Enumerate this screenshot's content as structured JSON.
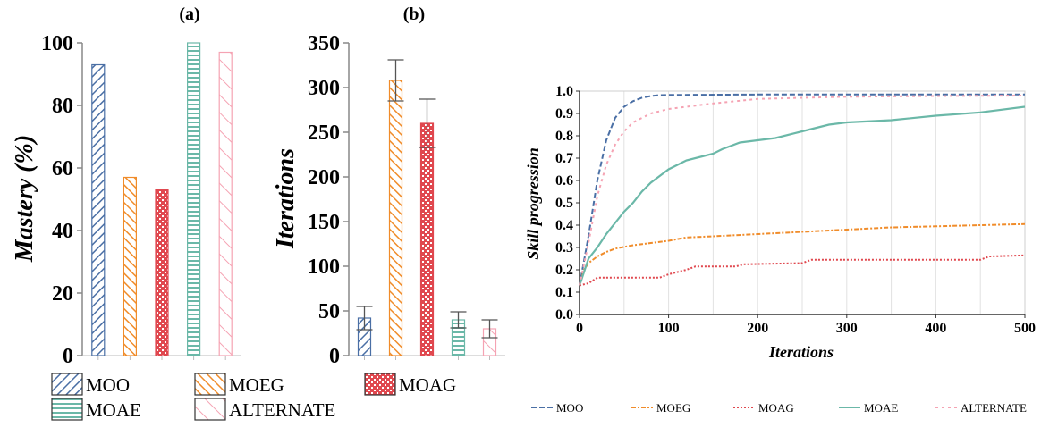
{
  "chart_data": [
    {
      "type": "bar",
      "panel_label": "(a)",
      "title": "",
      "xlabel": "",
      "ylabel": "Mastery (%)",
      "ylim": [
        0,
        100
      ],
      "yticks": [
        0,
        20,
        40,
        60,
        80,
        100
      ],
      "categories": [
        "MOO",
        "MOEG",
        "MOAG",
        "MOAE",
        "ALTERNATE"
      ],
      "values": [
        93,
        57,
        53,
        100,
        97
      ],
      "error": null
    },
    {
      "type": "bar",
      "panel_label": "(b)",
      "title": "",
      "xlabel": "",
      "ylabel": "Iterations",
      "ylim": [
        0,
        350
      ],
      "yticks": [
        0,
        50,
        100,
        150,
        200,
        250,
        300,
        350
      ],
      "categories": [
        "MOO",
        "MOEG",
        "MOAG",
        "MOAE",
        "ALTERNATE"
      ],
      "values": [
        42,
        308,
        260,
        40,
        30
      ],
      "error": [
        13,
        23,
        27,
        9,
        10
      ]
    },
    {
      "type": "line",
      "title": "",
      "xlabel": "Iterations",
      "ylabel": "Skill progression",
      "xlim": [
        0,
        500
      ],
      "ylim": [
        0,
        1.0
      ],
      "xticks": [
        0,
        100,
        200,
        300,
        400,
        500
      ],
      "yticks": [
        "0.0",
        "0.1",
        "0.2",
        "0.3",
        "0.4",
        "0.5",
        "0.6",
        "0.7",
        "0.8",
        "0.9",
        "1.0"
      ],
      "grid": "vertical",
      "legend": "bottom",
      "series": [
        {
          "name": "MOO",
          "color": "#4a6fa5",
          "dash": "dashed",
          "points": [
            [
              0,
              0.13
            ],
            [
              10,
              0.35
            ],
            [
              20,
              0.6
            ],
            [
              30,
              0.78
            ],
            [
              40,
              0.88
            ],
            [
              50,
              0.93
            ],
            [
              60,
              0.955
            ],
            [
              70,
              0.97
            ],
            [
              80,
              0.978
            ],
            [
              90,
              0.982
            ],
            [
              100,
              0.983
            ],
            [
              200,
              0.985
            ],
            [
              300,
              0.985
            ],
            [
              400,
              0.985
            ],
            [
              500,
              0.985
            ]
          ]
        },
        {
          "name": "MOEG",
          "color": "#f08c2a",
          "dash": "dashdot",
          "points": [
            [
              0,
              0.13
            ],
            [
              5,
              0.2
            ],
            [
              10,
              0.23
            ],
            [
              20,
              0.26
            ],
            [
              30,
              0.28
            ],
            [
              40,
              0.295
            ],
            [
              60,
              0.31
            ],
            [
              80,
              0.32
            ],
            [
              100,
              0.33
            ],
            [
              120,
              0.345
            ],
            [
              150,
              0.35
            ],
            [
              200,
              0.36
            ],
            [
              250,
              0.37
            ],
            [
              300,
              0.38
            ],
            [
              350,
              0.39
            ],
            [
              400,
              0.395
            ],
            [
              450,
              0.4
            ],
            [
              500,
              0.405
            ]
          ]
        },
        {
          "name": "MOAG",
          "color": "#e0484f",
          "dash": "dotted",
          "points": [
            [
              0,
              0.13
            ],
            [
              10,
              0.14
            ],
            [
              20,
              0.165
            ],
            [
              90,
              0.165
            ],
            [
              100,
              0.18
            ],
            [
              110,
              0.19
            ],
            [
              120,
              0.2
            ],
            [
              130,
              0.215
            ],
            [
              175,
              0.215
            ],
            [
              185,
              0.225
            ],
            [
              250,
              0.23
            ],
            [
              260,
              0.245
            ],
            [
              450,
              0.245
            ],
            [
              460,
              0.26
            ],
            [
              500,
              0.265
            ]
          ]
        },
        {
          "name": "MOAE",
          "color": "#6bb8a8",
          "dash": "solid",
          "points": [
            [
              0,
              0.13
            ],
            [
              10,
              0.25
            ],
            [
              20,
              0.3
            ],
            [
              30,
              0.36
            ],
            [
              40,
              0.41
            ],
            [
              50,
              0.46
            ],
            [
              60,
              0.5
            ],
            [
              70,
              0.55
            ],
            [
              80,
              0.59
            ],
            [
              90,
              0.62
            ],
            [
              100,
              0.65
            ],
            [
              110,
              0.67
            ],
            [
              120,
              0.69
            ],
            [
              140,
              0.71
            ],
            [
              150,
              0.72
            ],
            [
              160,
              0.74
            ],
            [
              180,
              0.77
            ],
            [
              200,
              0.78
            ],
            [
              220,
              0.79
            ],
            [
              250,
              0.82
            ],
            [
              280,
              0.85
            ],
            [
              300,
              0.86
            ],
            [
              350,
              0.87
            ],
            [
              400,
              0.89
            ],
            [
              450,
              0.905
            ],
            [
              500,
              0.93
            ]
          ]
        },
        {
          "name": "ALTERNATE",
          "color": "#f5a3b3",
          "dash": "dotted-wide",
          "points": [
            [
              0,
              0.13
            ],
            [
              10,
              0.32
            ],
            [
              20,
              0.53
            ],
            [
              30,
              0.67
            ],
            [
              40,
              0.76
            ],
            [
              50,
              0.82
            ],
            [
              60,
              0.86
            ],
            [
              70,
              0.88
            ],
            [
              80,
              0.9
            ],
            [
              100,
              0.92
            ],
            [
              120,
              0.93
            ],
            [
              150,
              0.945
            ],
            [
              200,
              0.965
            ],
            [
              250,
              0.97
            ],
            [
              300,
              0.975
            ],
            [
              400,
              0.978
            ],
            [
              500,
              0.98
            ]
          ]
        }
      ]
    }
  ],
  "colors": {
    "MOO": "#4a6fa5",
    "MOEG": "#f08c2a",
    "MOAG": "#e0484f",
    "MOAE": "#6bb8a8",
    "ALTERNATE": "#f5a3b3",
    "error_bar": "#555555"
  }
}
